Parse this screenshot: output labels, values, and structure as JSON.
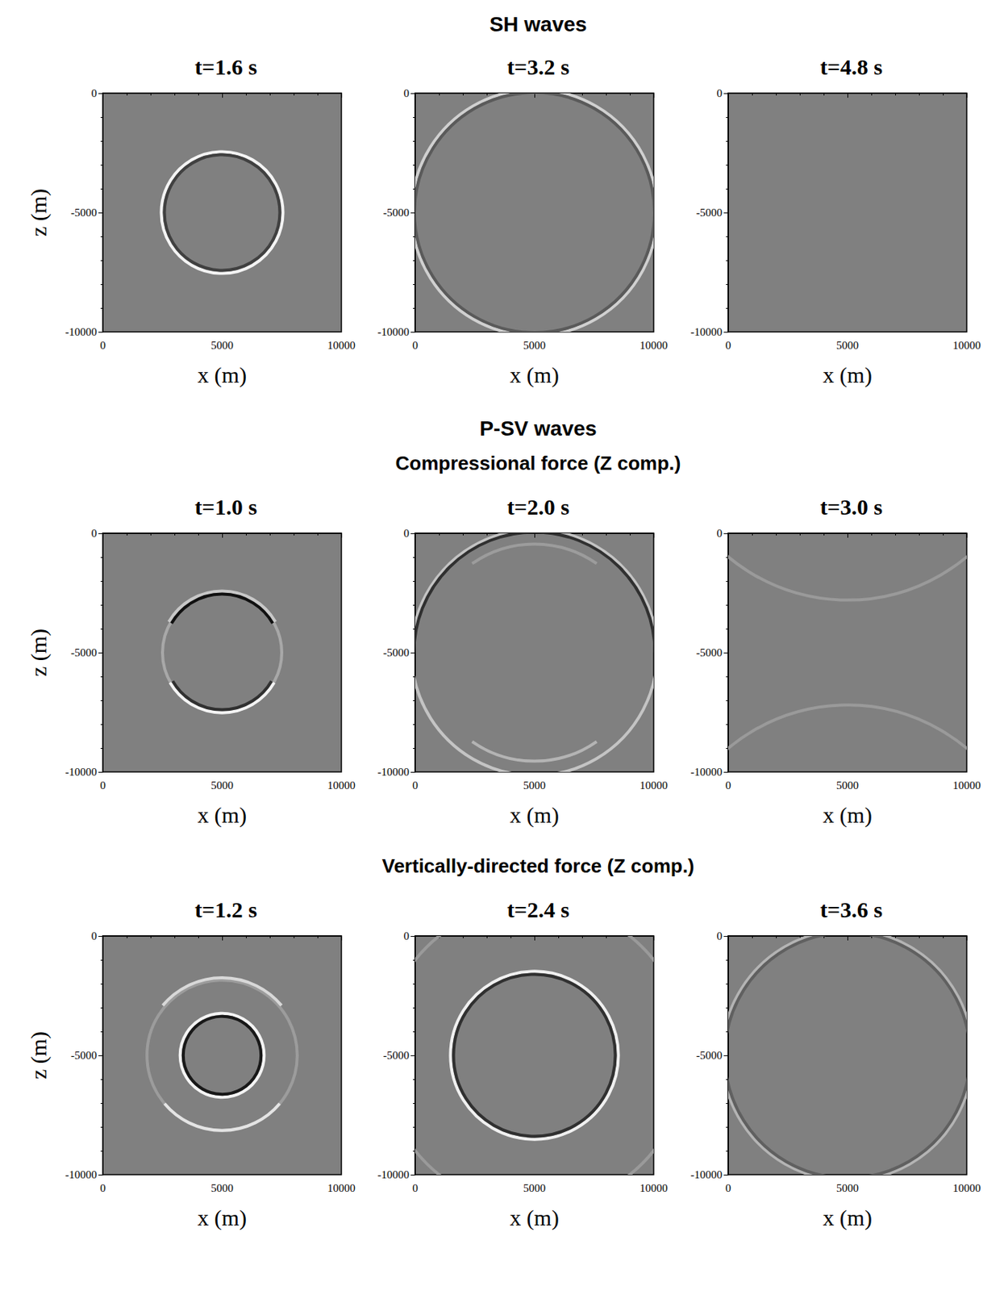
{
  "chart_data": {
    "type": "wavefield",
    "color": "#808080",
    "rows": [
      {
        "title": "SH waves",
        "panels": [
          {
            "title": "t=1.6 s",
            "xlabel": "x (m)",
            "ylabel": "z (m)",
            "xlim": [
              0,
              10000
            ],
            "ylim": [
              -10000,
              0
            ],
            "xticks": [
              0,
              5000,
              10000
            ],
            "yticks": [
              -10000,
              -5000,
              0
            ],
            "wavefronts": [
              {
                "x": 5000,
                "z": -5000,
                "radius": 2550,
                "color": "#f4f4f4"
              },
              {
                "x": 5000,
                "z": -5000,
                "radius": 2420,
                "color": "#404040"
              }
            ]
          },
          {
            "title": "t=3.2 s",
            "xlabel": "x (m)",
            "xlim": [
              0,
              10000
            ],
            "ylim": [
              -10000,
              0
            ],
            "xticks": [
              0,
              5000,
              10000
            ],
            "yticks": [
              -10000,
              -5000,
              0
            ],
            "wavefronts": [
              {
                "x": 5000,
                "z": -5000,
                "radius": 5150,
                "color": "#d0d0d0"
              },
              {
                "x": 5000,
                "z": -5000,
                "radius": 5030,
                "color": "#5a5a5a"
              }
            ]
          },
          {
            "title": "t=4.8 s",
            "xlabel": "x (m)",
            "xlim": [
              0,
              10000
            ],
            "ylim": [
              -10000,
              0
            ],
            "xticks": [
              0,
              5000,
              10000
            ],
            "yticks": [
              -10000,
              -5000,
              0
            ],
            "wavefronts": []
          }
        ]
      },
      {
        "title": "P-SV waves",
        "subtitle": "Compressional force (Z comp.)",
        "panels": [
          {
            "title": "t=1.0 s",
            "xlabel": "x (m)",
            "ylabel": "z (m)",
            "xlim": [
              0,
              10000
            ],
            "ylim": [
              -10000,
              0
            ],
            "xticks": [
              0,
              5000,
              10000
            ],
            "yticks": [
              -10000,
              -5000,
              0
            ],
            "wavefronts": [
              {
                "x": 5000,
                "z": -5000,
                "radius": 2500,
                "color": "#a8a8a8"
              },
              {
                "x": 5000,
                "z": -5000,
                "radius": 2580,
                "color": "#c8c8c8",
                "angles": [
                  30,
                  150
                ]
              },
              {
                "x": 5000,
                "z": -5000,
                "radius": 2450,
                "color": "#101010",
                "angles": [
                  30,
                  150
                ]
              },
              {
                "x": 5000,
                "z": -5000,
                "radius": 2520,
                "color": "#f4f4f4",
                "angles": [
                  210,
                  330
                ]
              },
              {
                "x": 5000,
                "z": -5000,
                "radius": 2390,
                "color": "#303030",
                "angles": [
                  210,
                  330
                ]
              }
            ]
          },
          {
            "title": "t=2.0 s",
            "xlabel": "x (m)",
            "xlim": [
              0,
              10000
            ],
            "ylim": [
              -10000,
              0
            ],
            "xticks": [
              0,
              5000,
              10000
            ],
            "yticks": [
              -10000,
              -5000,
              0
            ],
            "wavefronts": [
              {
                "x": 5000,
                "z": -5000,
                "radius": 5150,
                "color": "#c4c4c4"
              },
              {
                "x": 5000,
                "z": -5000,
                "radius": 5050,
                "color": "#303030",
                "angles": [
                  90,
                  180
                ]
              },
              {
                "x": 5000,
                "z": -5000,
                "radius": 5050,
                "color": "#303030",
                "angles": [
                  0,
                  90
                ]
              },
              {
                "x": 5000,
                "z": -5000,
                "radius": 4550,
                "color": "#9c9c9c",
                "angles": [
                  55,
                  125
                ]
              },
              {
                "x": 5000,
                "z": -5000,
                "radius": 4550,
                "color": "#b4b4b4",
                "angles": [
                  235,
                  305
                ]
              }
            ]
          },
          {
            "title": "t=3.0 s",
            "xlabel": "x (m)",
            "xlim": [
              0,
              10000
            ],
            "ylim": [
              -10000,
              0
            ],
            "xticks": [
              0,
              5000,
              10000
            ],
            "yticks": [
              -10000,
              -5000,
              0
            ],
            "wavefronts": [
              {
                "x": 5000,
                "z": 5000,
                "radius": 7800,
                "color": "#9a9a9a"
              },
              {
                "x": 5000,
                "z": -15000,
                "radius": 7800,
                "color": "#9a9a9a"
              }
            ]
          }
        ]
      },
      {
        "subtitle": "Vertically-directed force (Z comp.)",
        "panels": [
          {
            "title": "t=1.2 s",
            "xlabel": "x (m)",
            "ylabel": "z (m)",
            "xlim": [
              0,
              10000
            ],
            "ylim": [
              -10000,
              0
            ],
            "xticks": [
              0,
              5000,
              10000
            ],
            "yticks": [
              -10000,
              -5000,
              0
            ],
            "wavefronts": [
              {
                "x": 5000,
                "z": -5000,
                "radius": 3150,
                "color": "#9c9c9c"
              },
              {
                "x": 5000,
                "z": -5000,
                "radius": 3250,
                "color": "#d8d8d8",
                "angles": [
                  40,
                  140
                ]
              },
              {
                "x": 5000,
                "z": -5000,
                "radius": 3150,
                "color": "#e4e4e4",
                "angles": [
                  220,
                  320
                ]
              },
              {
                "x": 5000,
                "z": -5000,
                "radius": 1760,
                "color": "#f4f4f4"
              },
              {
                "x": 5000,
                "z": -5000,
                "radius": 1630,
                "color": "#181818"
              }
            ]
          },
          {
            "title": "t=2.4 s",
            "xlabel": "x (m)",
            "xlim": [
              0,
              10000
            ],
            "ylim": [
              -10000,
              0
            ],
            "xticks": [
              0,
              5000,
              10000
            ],
            "yticks": [
              -10000,
              -5000,
              0
            ],
            "wavefronts": [
              {
                "x": 5000,
                "z": -5000,
                "radius": 3520,
                "color": "#f0f0f0"
              },
              {
                "x": 5000,
                "z": -5000,
                "radius": 3390,
                "color": "#303030"
              },
              {
                "x": 5000,
                "z": -5000,
                "radius": 6400,
                "color": "#9a9a9a"
              }
            ]
          },
          {
            "title": "t=3.6 s",
            "xlabel": "x (m)",
            "xlim": [
              0,
              10000
            ],
            "ylim": [
              -10000,
              0
            ],
            "xticks": [
              0,
              5000,
              10000
            ],
            "yticks": [
              -10000,
              -5000,
              0
            ],
            "wavefronts": [
              {
                "x": 5000,
                "z": -5000,
                "radius": 5250,
                "color": "#b4b4b4"
              },
              {
                "x": 5000,
                "z": -5000,
                "radius": 5140,
                "color": "#606060"
              }
            ]
          }
        ]
      }
    ]
  }
}
